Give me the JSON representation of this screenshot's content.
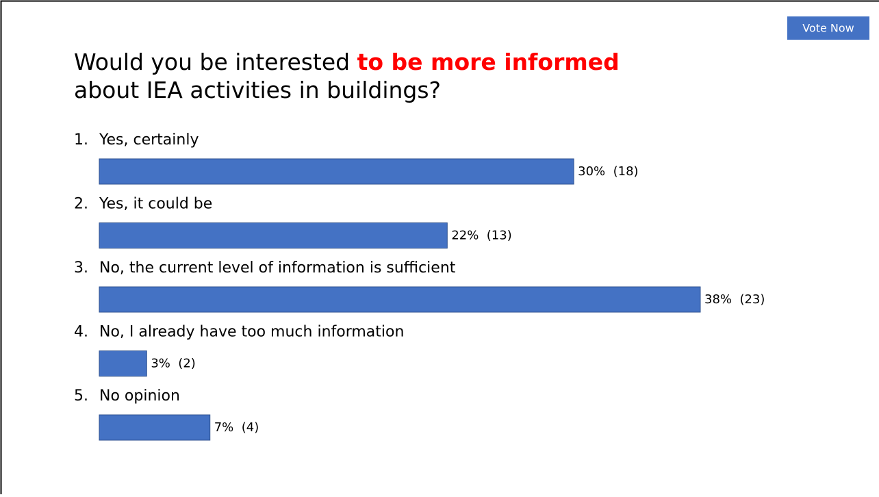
{
  "chart_data": {
    "type": "bar",
    "orientation": "horizontal",
    "title_parts": [
      "Would you be interested ",
      "to be more informed",
      " about IEA activities in buildings?"
    ],
    "title_highlight_color": "#ff0000",
    "button": "Vote Now",
    "numbers": [
      "1.",
      "2.",
      "3.",
      "4.",
      "5."
    ],
    "categories": [
      "Yes, certainly",
      "Yes, it could be",
      "No, the current level of information is sufficient",
      "No, I already have too much information",
      "No opinion"
    ],
    "values": [
      30,
      22,
      38,
      3,
      7
    ],
    "value_labels": [
      "30%  (18)",
      "22%  (13)",
      "38%  (23)",
      "3%  (2)",
      "7%  (4)"
    ],
    "color": "#4472c4"
  }
}
